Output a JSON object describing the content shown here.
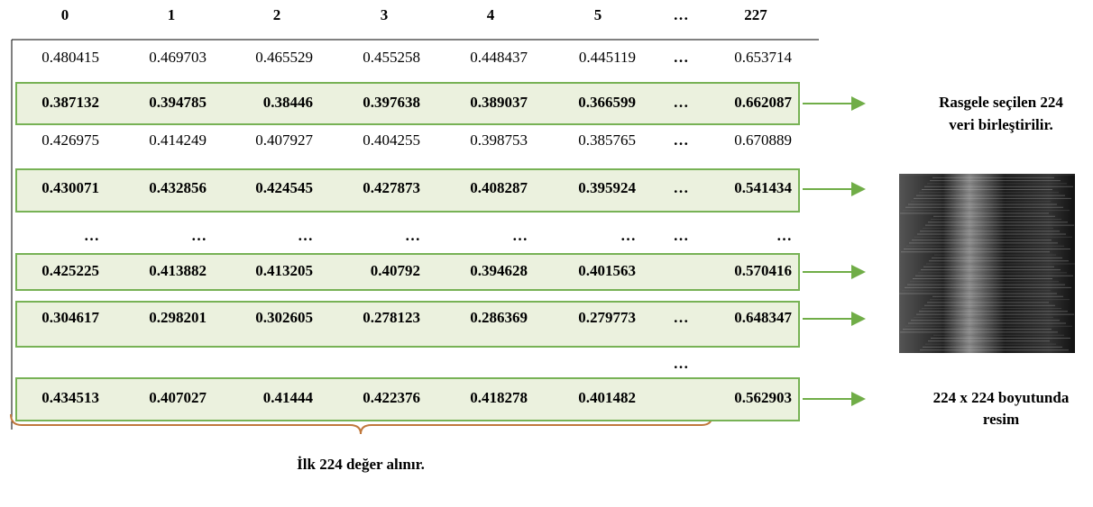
{
  "header": [
    "0",
    "1",
    "2",
    "3",
    "4",
    "5",
    "…",
    "227"
  ],
  "rows": [
    {
      "cells": [
        "0.480415",
        "0.469703",
        "0.465529",
        "0.455258",
        "0.448437",
        "0.445119"
      ],
      "ellipsis": "…",
      "last": "0.653714",
      "highlighted": false
    },
    {
      "cells": [
        "0.387132",
        "0.394785",
        "0.38446",
        "0.397638",
        "0.389037",
        "0.366599"
      ],
      "ellipsis": "…",
      "last": "0.662087",
      "highlighted": true
    },
    {
      "cells": [
        "0.426975",
        "0.414249",
        "0.407927",
        "0.404255",
        "0.398753",
        "0.385765"
      ],
      "ellipsis": "…",
      "last": "0.670889",
      "highlighted": false
    },
    {
      "cells": [
        "0.430071",
        "0.432856",
        "0.424545",
        "0.427873",
        "0.408287",
        "0.395924"
      ],
      "ellipsis": "…",
      "last": "0.541434",
      "highlighted": true
    },
    {
      "cells": [
        "…",
        "…",
        "…",
        "…",
        "…",
        "…"
      ],
      "ellipsis": "…",
      "last": "…",
      "highlighted": false
    },
    {
      "cells": [
        "0.425225",
        "0.413882",
        "0.413205",
        "0.40792",
        "0.394628",
        "0.401563"
      ],
      "last": "0.570416",
      "highlighted": true
    },
    {
      "cells": [
        "0.304617",
        "0.298201",
        "0.302605",
        "0.278123",
        "0.286369",
        "0.279773"
      ],
      "ellipsis": "…",
      "last": "0.648347",
      "highlighted": true
    },
    {
      "ellipsis": "…",
      "highlighted": false
    },
    {
      "cells": [
        "0.434513",
        "0.407027",
        "0.41444",
        "0.422376",
        "0.418278",
        "0.401482"
      ],
      "last": "0.562903",
      "highlighted": true
    }
  ],
  "side_top": [
    "Rasgele seçilen 224",
    "veri birleştirilir."
  ],
  "side_bottom": [
    "224 x 224 boyutunda",
    "resim"
  ],
  "bottom_label": "İlk 224 değer alınır."
}
